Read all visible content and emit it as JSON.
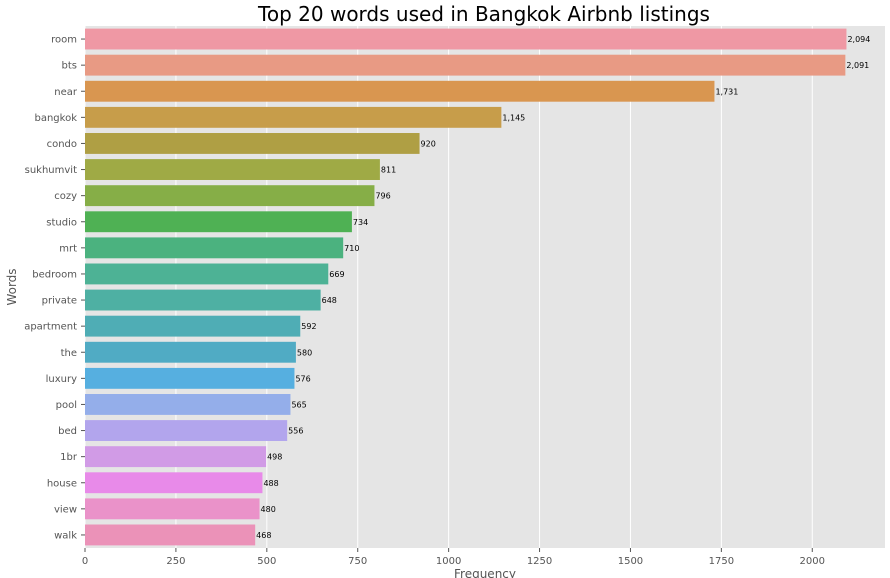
{
  "chart_data": {
    "type": "bar",
    "orientation": "horizontal",
    "title": "Top 20 words used in Bangkok Airbnb listings",
    "xlabel": "Frequency",
    "ylabel": "Words",
    "xlim": [
      0,
      2200
    ],
    "xticks": [
      0,
      250,
      500,
      750,
      1000,
      1250,
      1500,
      1750,
      2000
    ],
    "grid": true,
    "categories": [
      "room",
      "bts",
      "near",
      "bangkok",
      "condo",
      "sukhumvit",
      "cozy",
      "studio",
      "mrt",
      "bedroom",
      "private",
      "apartment",
      "the",
      "luxury",
      "pool",
      "bed",
      "1br",
      "house",
      "view",
      "walk"
    ],
    "values": [
      2094,
      2091,
      1731,
      1145,
      920,
      811,
      796,
      734,
      710,
      669,
      648,
      592,
      580,
      576,
      565,
      556,
      498,
      488,
      480,
      468
    ],
    "value_labels": [
      "2,094",
      "2,091",
      "1,731",
      "1,145",
      "920",
      "811",
      "796",
      "734",
      "710",
      "669",
      "648",
      "592",
      "580",
      "576",
      "565",
      "556",
      "498",
      "488",
      "480",
      "468"
    ],
    "colors": [
      "#ef98a4",
      "#e89a84",
      "#d99650",
      "#c79d4a",
      "#af9f44",
      "#9faa45",
      "#86ae47",
      "#4fb154",
      "#4bb27f",
      "#4db295",
      "#4eb0a3",
      "#4fadb5",
      "#50abc4",
      "#56afe0",
      "#94aeea",
      "#b2a5ed",
      "#d19be6",
      "#e88ae9",
      "#ea92c9",
      "#eb92b8"
    ],
    "plot_background": "#e5e5e5",
    "grid_color": "#ffffff"
  }
}
